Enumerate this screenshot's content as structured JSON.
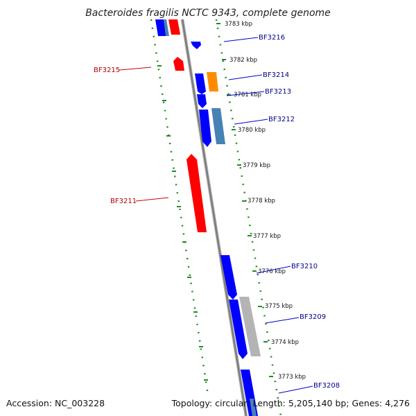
{
  "title": "Bacteroides fragilis NCTC 9343, complete genome",
  "footer": {
    "accession": "Accession: NC_003228",
    "summary": "Topology: circular; Length: 5,205,140 bp; Genes: 4,276"
  },
  "colors": {
    "backbone": "#808080",
    "outline": "#228B22",
    "forward_strand": "#0000ff",
    "reverse_strand": "#ff0000",
    "label_forward": "#00008b",
    "label_reverse": "#b00000"
  },
  "scale_labels": [
    "3783 kbp",
    "3782 kbp",
    "3781 kbp",
    "3780 kbp",
    "3779 kbp",
    "3778 kbp",
    "3777 kbp",
    "3776 kbp",
    "3775 kbp",
    "3774 kbp",
    "3773 kbp"
  ],
  "gene_labels": [
    {
      "text": "BF3216",
      "strand": "forward"
    },
    {
      "text": "BF3215",
      "strand": "reverse"
    },
    {
      "text": "BF3214",
      "strand": "forward"
    },
    {
      "text": "BF3213",
      "strand": "forward"
    },
    {
      "text": "BF3212",
      "strand": "forward"
    },
    {
      "text": "BF3211",
      "strand": "reverse"
    },
    {
      "text": "BF3210",
      "strand": "forward"
    },
    {
      "text": "BF3209",
      "strand": "forward"
    },
    {
      "text": "BF3208",
      "strand": "forward"
    }
  ]
}
